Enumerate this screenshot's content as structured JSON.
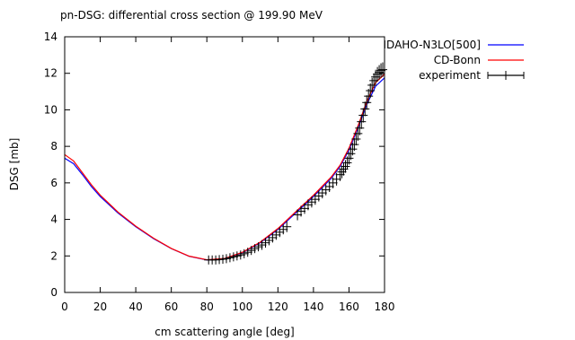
{
  "chart_data": {
    "type": "line",
    "title": "pn-DSG: differential cross section @ 199.90 MeV",
    "xlabel": "cm scattering angle [deg]",
    "ylabel": "DSG [mb]",
    "xlim": [
      0,
      180
    ],
    "ylim": [
      0,
      14
    ],
    "xticks": [
      0,
      20,
      40,
      60,
      80,
      100,
      120,
      140,
      160,
      180
    ],
    "yticks": [
      0,
      2,
      4,
      6,
      8,
      10,
      12,
      14
    ],
    "grid": false,
    "legend_position": "outside-top-right",
    "series": [
      {
        "name": "IDAHO-N3LO[500]",
        "kind": "line",
        "color": "#0000ff",
        "x": [
          0,
          5,
          10,
          15,
          20,
          30,
          40,
          50,
          60,
          70,
          80,
          90,
          100,
          110,
          120,
          130,
          140,
          150,
          155,
          160,
          165,
          170,
          175,
          180
        ],
        "y": [
          7.35,
          7.05,
          6.45,
          5.8,
          5.25,
          4.35,
          3.6,
          2.95,
          2.4,
          1.98,
          1.78,
          1.85,
          2.18,
          2.72,
          3.45,
          4.35,
          5.25,
          6.25,
          6.9,
          7.8,
          9.0,
          10.3,
          11.3,
          11.75
        ]
      },
      {
        "name": "CD-Bonn",
        "kind": "line",
        "color": "#ff0000",
        "x": [
          0,
          5,
          10,
          15,
          20,
          30,
          40,
          50,
          60,
          70,
          80,
          90,
          100,
          110,
          120,
          130,
          140,
          150,
          155,
          160,
          165,
          170,
          175,
          180
        ],
        "y": [
          7.55,
          7.2,
          6.55,
          5.9,
          5.33,
          4.4,
          3.63,
          2.97,
          2.41,
          1.99,
          1.79,
          1.86,
          2.2,
          2.75,
          3.5,
          4.42,
          5.32,
          6.32,
          6.97,
          7.9,
          9.1,
          10.45,
          11.5,
          11.95
        ]
      },
      {
        "name": "experiment",
        "kind": "errorbars",
        "color": "#000000",
        "x": [
          81,
          83,
          85,
          87,
          89,
          91,
          93,
          95,
          97,
          99,
          101,
          103,
          105,
          107,
          109,
          111,
          113,
          115,
          117,
          119,
          121,
          123,
          125,
          131,
          133,
          135,
          137,
          139,
          141,
          143,
          145,
          147,
          149,
          151,
          153,
          155,
          156,
          157,
          158,
          159,
          160,
          161,
          162,
          163,
          164,
          165,
          166,
          167,
          168,
          169,
          170,
          171,
          172,
          173,
          174,
          175,
          176,
          177,
          178,
          179
        ],
        "y": [
          1.78,
          1.78,
          1.78,
          1.8,
          1.82,
          1.85,
          1.9,
          1.95,
          2.0,
          2.05,
          2.12,
          2.2,
          2.3,
          2.4,
          2.5,
          2.6,
          2.72,
          2.85,
          3.0,
          3.15,
          3.3,
          3.45,
          3.6,
          4.25,
          4.45,
          4.6,
          4.8,
          4.95,
          5.1,
          5.28,
          5.45,
          5.62,
          5.8,
          6.0,
          6.2,
          6.45,
          6.6,
          6.75,
          6.9,
          7.1,
          7.35,
          7.6,
          7.85,
          8.1,
          8.4,
          8.7,
          9.0,
          9.35,
          9.7,
          10.05,
          10.4,
          10.75,
          11.05,
          11.35,
          11.6,
          11.8,
          11.95,
          12.05,
          12.15,
          12.2
        ],
        "yerr": [
          0.1,
          0.1,
          0.1,
          0.1,
          0.1,
          0.1,
          0.1,
          0.1,
          0.1,
          0.1,
          0.1,
          0.1,
          0.1,
          0.1,
          0.1,
          0.12,
          0.12,
          0.12,
          0.12,
          0.12,
          0.12,
          0.12,
          0.15,
          0.15,
          0.15,
          0.15,
          0.15,
          0.15,
          0.15,
          0.15,
          0.15,
          0.15,
          0.15,
          0.15,
          0.2,
          0.2,
          0.2,
          0.2,
          0.2,
          0.2,
          0.2,
          0.2,
          0.2,
          0.2,
          0.2,
          0.25,
          0.25,
          0.25,
          0.25,
          0.25,
          0.25,
          0.25,
          0.25,
          0.25,
          0.25,
          0.25,
          0.25,
          0.25,
          0.25,
          0.25
        ]
      }
    ]
  }
}
